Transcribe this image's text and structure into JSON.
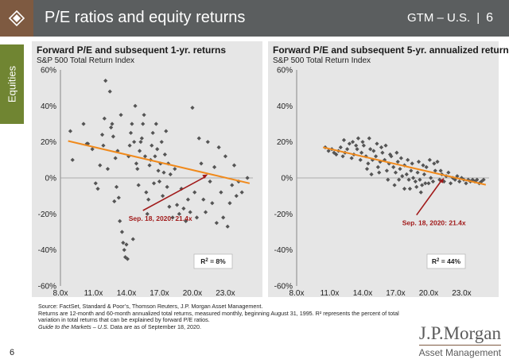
{
  "header": {
    "title": "P/E ratios and equity returns",
    "section": "GTM – U.S.",
    "separator": "|",
    "page": "6",
    "colors": {
      "bar": "#5b5e5f",
      "logo": "#7e5a41",
      "tab": "#708532"
    }
  },
  "sidebar": {
    "tab_label": "Equities"
  },
  "chart_data": [
    {
      "type": "scatter",
      "title": "Forward P/E and subsequent 1-yr. returns",
      "subtitle": "S&P 500 Total Return Index",
      "xlabel": "",
      "ylabel": "",
      "xlim": [
        8.0,
        25.5
      ],
      "ylim": [
        -60,
        60
      ],
      "x_ticks": [
        "8.0x",
        "11.0x",
        "14.0x",
        "17.0x",
        "20.0x",
        "23.0x"
      ],
      "x_tick_values": [
        8,
        11,
        14,
        17,
        20,
        23
      ],
      "y_ticks": [
        "60%",
        "40%",
        "20%",
        "0%",
        "-20%",
        "-40%",
        "-60%"
      ],
      "y_tick_values": [
        60,
        40,
        20,
        0,
        -20,
        -40,
        -60
      ],
      "grid": false,
      "marker_color": "#555555",
      "trendline": {
        "x": [
          8.7,
          25.2
        ],
        "y": [
          20.5,
          -3.0
        ],
        "color": "#f08a1c"
      },
      "annotation": {
        "text": "Sep. 18, 2020: 21.4x",
        "x_text": 14.2,
        "y_text": -22.5,
        "x_arrow": 21.4,
        "y_arrow": 2.0,
        "color": "#a11a1a"
      },
      "r_squared_label": "R",
      "r_squared_value": "8%",
      "points": [
        [
          8.9,
          26
        ],
        [
          9.1,
          10
        ],
        [
          10.1,
          30
        ],
        [
          10.4,
          19
        ],
        [
          10.5,
          19
        ],
        [
          10.9,
          16
        ],
        [
          11.2,
          -3
        ],
        [
          11.4,
          -6
        ],
        [
          11.6,
          7
        ],
        [
          11.8,
          24
        ],
        [
          11.9,
          18
        ],
        [
          12.0,
          33
        ],
        [
          12.1,
          54
        ],
        [
          12.3,
          5
        ],
        [
          12.5,
          48
        ],
        [
          12.6,
          28
        ],
        [
          12.7,
          30
        ],
        [
          12.8,
          23
        ],
        [
          12.9,
          -13
        ],
        [
          13.0,
          11
        ],
        [
          13.1,
          -5
        ],
        [
          13.2,
          15
        ],
        [
          13.3,
          -11
        ],
        [
          13.4,
          -24
        ],
        [
          13.5,
          35
        ],
        [
          13.6,
          -30
        ],
        [
          13.7,
          -36
        ],
        [
          13.8,
          -40
        ],
        [
          13.9,
          -44
        ],
        [
          14.0,
          -37
        ],
        [
          14.1,
          -45
        ],
        [
          14.2,
          12
        ],
        [
          14.3,
          18
        ],
        [
          14.4,
          25
        ],
        [
          14.5,
          30
        ],
        [
          14.6,
          -34
        ],
        [
          14.7,
          20
        ],
        [
          14.8,
          40
        ],
        [
          14.9,
          8
        ],
        [
          15.0,
          5
        ],
        [
          15.1,
          -4
        ],
        [
          15.2,
          15
        ],
        [
          15.3,
          20
        ],
        [
          15.4,
          22
        ],
        [
          15.5,
          30
        ],
        [
          15.6,
          35
        ],
        [
          15.7,
          12
        ],
        [
          15.8,
          -8
        ],
        [
          15.9,
          -20
        ],
        [
          16.0,
          -12
        ],
        [
          16.1,
          7
        ],
        [
          16.2,
          10
        ],
        [
          16.3,
          18
        ],
        [
          16.4,
          25
        ],
        [
          16.5,
          -3
        ],
        [
          16.6,
          12
        ],
        [
          16.7,
          30
        ],
        [
          16.8,
          16
        ],
        [
          16.9,
          4
        ],
        [
          17.0,
          -2
        ],
        [
          17.1,
          8
        ],
        [
          17.2,
          20
        ],
        [
          17.3,
          -10
        ],
        [
          17.4,
          3
        ],
        [
          17.5,
          13
        ],
        [
          17.6,
          26
        ],
        [
          17.7,
          -5
        ],
        [
          17.8,
          8
        ],
        [
          17.9,
          -16
        ],
        [
          18.0,
          2
        ],
        [
          18.2,
          -22
        ],
        [
          18.4,
          5
        ],
        [
          18.6,
          -15
        ],
        [
          18.8,
          -20
        ],
        [
          19.0,
          -6
        ],
        [
          19.2,
          -17
        ],
        [
          19.4,
          -24
        ],
        [
          19.6,
          -12
        ],
        [
          19.8,
          -19
        ],
        [
          20.0,
          39
        ],
        [
          20.2,
          -8
        ],
        [
          20.4,
          -22
        ],
        [
          20.6,
          22
        ],
        [
          20.8,
          8
        ],
        [
          21.0,
          -12
        ],
        [
          21.2,
          -19
        ],
        [
          21.4,
          20
        ],
        [
          21.6,
          -2
        ],
        [
          21.8,
          -14
        ],
        [
          22.0,
          6
        ],
        [
          22.2,
          -25
        ],
        [
          22.4,
          17
        ],
        [
          22.6,
          -8
        ],
        [
          22.8,
          -22
        ],
        [
          23.0,
          12
        ],
        [
          23.2,
          -27
        ],
        [
          23.4,
          -14
        ],
        [
          23.6,
          -4
        ],
        [
          23.8,
          7
        ],
        [
          24.0,
          -10
        ],
        [
          24.2,
          -2
        ],
        [
          24.5,
          -8
        ],
        [
          25.0,
          0
        ]
      ]
    },
    {
      "type": "scatter",
      "title": "Forward P/E and subsequent 5-yr. annualized returns",
      "subtitle": "S&P 500 Total Return Index",
      "xlabel": "",
      "ylabel": "",
      "xlim": [
        8.0,
        25.5
      ],
      "ylim": [
        -60,
        60
      ],
      "x_ticks": [
        "8.0x",
        "11.0x",
        "14.0x",
        "17.0x",
        "20.0x",
        "23.0x"
      ],
      "x_tick_values": [
        8,
        11,
        14,
        17,
        20,
        23
      ],
      "y_ticks": [
        "60%",
        "40%",
        "20%",
        "0%",
        "-20%",
        "-40%",
        "-60%"
      ],
      "y_tick_values": [
        60,
        40,
        20,
        0,
        -20,
        -40,
        -60
      ],
      "grid": false,
      "marker_color": "#555555",
      "trendline": {
        "x": [
          10.4,
          25.2
        ],
        "y": [
          17.0,
          -3.8
        ],
        "color": "#f08a1c"
      },
      "annotation": {
        "text": "Sep. 18, 2020: 21.4x",
        "x_text": 17.6,
        "y_text": -25.0,
        "x_arrow": 21.4,
        "y_arrow": 0.0,
        "color": "#a11a1a"
      },
      "r_squared_label": "R",
      "r_squared_value": "44%",
      "points": [
        [
          10.6,
          17
        ],
        [
          10.9,
          15
        ],
        [
          11.2,
          16
        ],
        [
          11.4,
          14
        ],
        [
          11.6,
          13
        ],
        [
          11.8,
          15
        ],
        [
          12.0,
          17
        ],
        [
          12.2,
          12
        ],
        [
          12.4,
          14
        ],
        [
          12.6,
          16
        ],
        [
          12.8,
          19
        ],
        [
          13.0,
          11
        ],
        [
          13.2,
          13
        ],
        [
          13.4,
          18
        ],
        [
          13.6,
          22
        ],
        [
          13.8,
          10
        ],
        [
          13.9,
          14
        ],
        [
          14.1,
          18
        ],
        [
          14.3,
          12
        ],
        [
          14.5,
          8
        ],
        [
          14.7,
          16
        ],
        [
          14.9,
          10
        ],
        [
          15.0,
          15
        ],
        [
          15.2,
          12
        ],
        [
          15.4,
          6
        ],
        [
          15.6,
          9
        ],
        [
          15.8,
          14
        ],
        [
          16.0,
          10
        ],
        [
          16.2,
          4
        ],
        [
          16.4,
          8
        ],
        [
          16.6,
          12
        ],
        [
          16.8,
          6
        ],
        [
          17.0,
          3
        ],
        [
          17.2,
          9
        ],
        [
          17.4,
          5
        ],
        [
          17.6,
          1
        ],
        [
          17.8,
          7
        ],
        [
          18.0,
          2
        ],
        [
          18.2,
          -1
        ],
        [
          18.4,
          4
        ],
        [
          18.6,
          0
        ],
        [
          18.8,
          -2
        ],
        [
          19.0,
          3
        ],
        [
          19.2,
          -1
        ],
        [
          19.4,
          -4
        ],
        [
          19.6,
          2
        ],
        [
          19.8,
          6
        ],
        [
          20.0,
          -3
        ],
        [
          20.2,
          0
        ],
        [
          20.4,
          -2
        ],
        [
          20.6,
          4
        ],
        [
          20.8,
          9
        ],
        [
          21.0,
          -1
        ],
        [
          21.2,
          2
        ],
        [
          21.4,
          -2
        ],
        [
          21.6,
          1
        ],
        [
          21.8,
          3
        ],
        [
          22.0,
          -3
        ],
        [
          22.2,
          0
        ],
        [
          22.4,
          -1
        ],
        [
          22.6,
          1
        ],
        [
          22.8,
          -2
        ],
        [
          23.0,
          0
        ],
        [
          23.2,
          -1
        ],
        [
          23.4,
          -3
        ],
        [
          23.6,
          -1
        ],
        [
          23.8,
          -2
        ],
        [
          24.0,
          -1
        ],
        [
          24.2,
          -2
        ],
        [
          24.4,
          -1
        ],
        [
          24.6,
          -3
        ],
        [
          24.8,
          -2
        ],
        [
          25.0,
          -1
        ],
        [
          12.3,
          21
        ],
        [
          13.1,
          20
        ],
        [
          13.5,
          16
        ],
        [
          14.0,
          20
        ],
        [
          14.6,
          22
        ],
        [
          15.3,
          19
        ],
        [
          15.7,
          17
        ],
        [
          16.1,
          18
        ],
        [
          16.5,
          13
        ],
        [
          17.1,
          14
        ],
        [
          17.5,
          11
        ],
        [
          18.1,
          10
        ],
        [
          18.5,
          8
        ],
        [
          19.1,
          9
        ],
        [
          19.5,
          7
        ],
        [
          20.1,
          10
        ],
        [
          20.5,
          8
        ],
        [
          21.1,
          4
        ],
        [
          14.4,
          5
        ],
        [
          14.8,
          2
        ],
        [
          15.5,
          3
        ],
        [
          16.3,
          -1
        ],
        [
          16.9,
          -4
        ],
        [
          17.3,
          -1
        ],
        [
          18.3,
          -6
        ],
        [
          18.9,
          -5
        ],
        [
          19.3,
          -8
        ],
        [
          19.7,
          -3
        ],
        [
          17.8,
          -6
        ]
      ]
    }
  ],
  "footer": {
    "source_lines": [
      "Source: FactSet, Standard & Poor’s, Thomson Reuters, J.P. Morgan Asset Management.",
      "Returns are 12-month and 60-month annualized total returns, measured monthly, beginning August 31, 1995. R² represents the percent of total",
      "variation in total returns that can be explained by forward P/E ratios."
    ],
    "guide_italic": "Guide to the Markets – U.S.",
    "guide_rest": " Data are as of September 18, 2020.",
    "page_number": "6",
    "brand": "J.P.Morgan",
    "brand_sub": "Asset Management"
  }
}
